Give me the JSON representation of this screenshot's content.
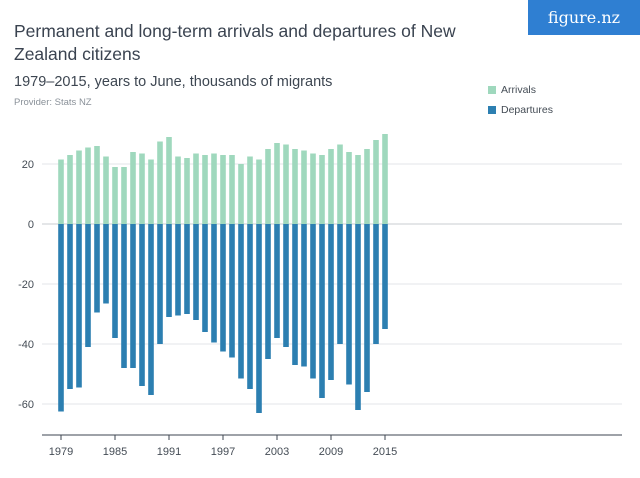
{
  "title": "Permanent and long-term arrivals and departures of New Zealand citizens",
  "subtitle": "1979–2015, years to June, thousands of migrants",
  "provider": "Provider: Stats NZ",
  "brand": "figure.nz",
  "colors": {
    "arrivals": "#9fd8bd",
    "departures": "#2c7fb1",
    "brand": "#2f7fd2"
  },
  "chart_data": {
    "type": "bar",
    "years": [
      1979,
      1980,
      1981,
      1982,
      1983,
      1984,
      1985,
      1986,
      1987,
      1988,
      1989,
      1990,
      1991,
      1992,
      1993,
      1994,
      1995,
      1996,
      1997,
      1998,
      1999,
      2000,
      2001,
      2002,
      2003,
      2004,
      2005,
      2006,
      2007,
      2008,
      2009,
      2010,
      2011,
      2012,
      2013,
      2014,
      2015
    ],
    "series": [
      {
        "name": "Arrivals",
        "values": [
          21.5,
          23,
          24.5,
          25.5,
          26,
          22.5,
          19,
          19,
          24,
          23.5,
          21.5,
          27.5,
          29,
          22.5,
          22,
          23.5,
          23,
          23.5,
          23,
          23,
          20,
          22.5,
          21.5,
          25,
          27,
          26.5,
          25,
          24.5,
          23.5,
          23,
          25,
          26.5,
          24,
          23,
          25,
          28,
          30
        ]
      },
      {
        "name": "Departures",
        "values": [
          -62.5,
          -55,
          -54.5,
          -41,
          -29.5,
          -26.5,
          -38,
          -48,
          -48,
          -54,
          -57,
          -40,
          -31,
          -30.5,
          -30,
          -32,
          -36,
          -39.5,
          -42.5,
          -44.5,
          -51.5,
          -55,
          -63,
          -45,
          -38,
          -41,
          -47,
          -47.5,
          -51.5,
          -58,
          -52,
          -40,
          -53.5,
          -62,
          -56,
          -40,
          -35
        ]
      }
    ],
    "xticks": [
      "1979",
      "1985",
      "1991",
      "1997",
      "2003",
      "2009",
      "2015"
    ],
    "yticks": [
      "20",
      "0",
      "-20",
      "-40",
      "-60"
    ],
    "ylim": [
      -70,
      30
    ],
    "grid": true,
    "legend": "top-right"
  }
}
